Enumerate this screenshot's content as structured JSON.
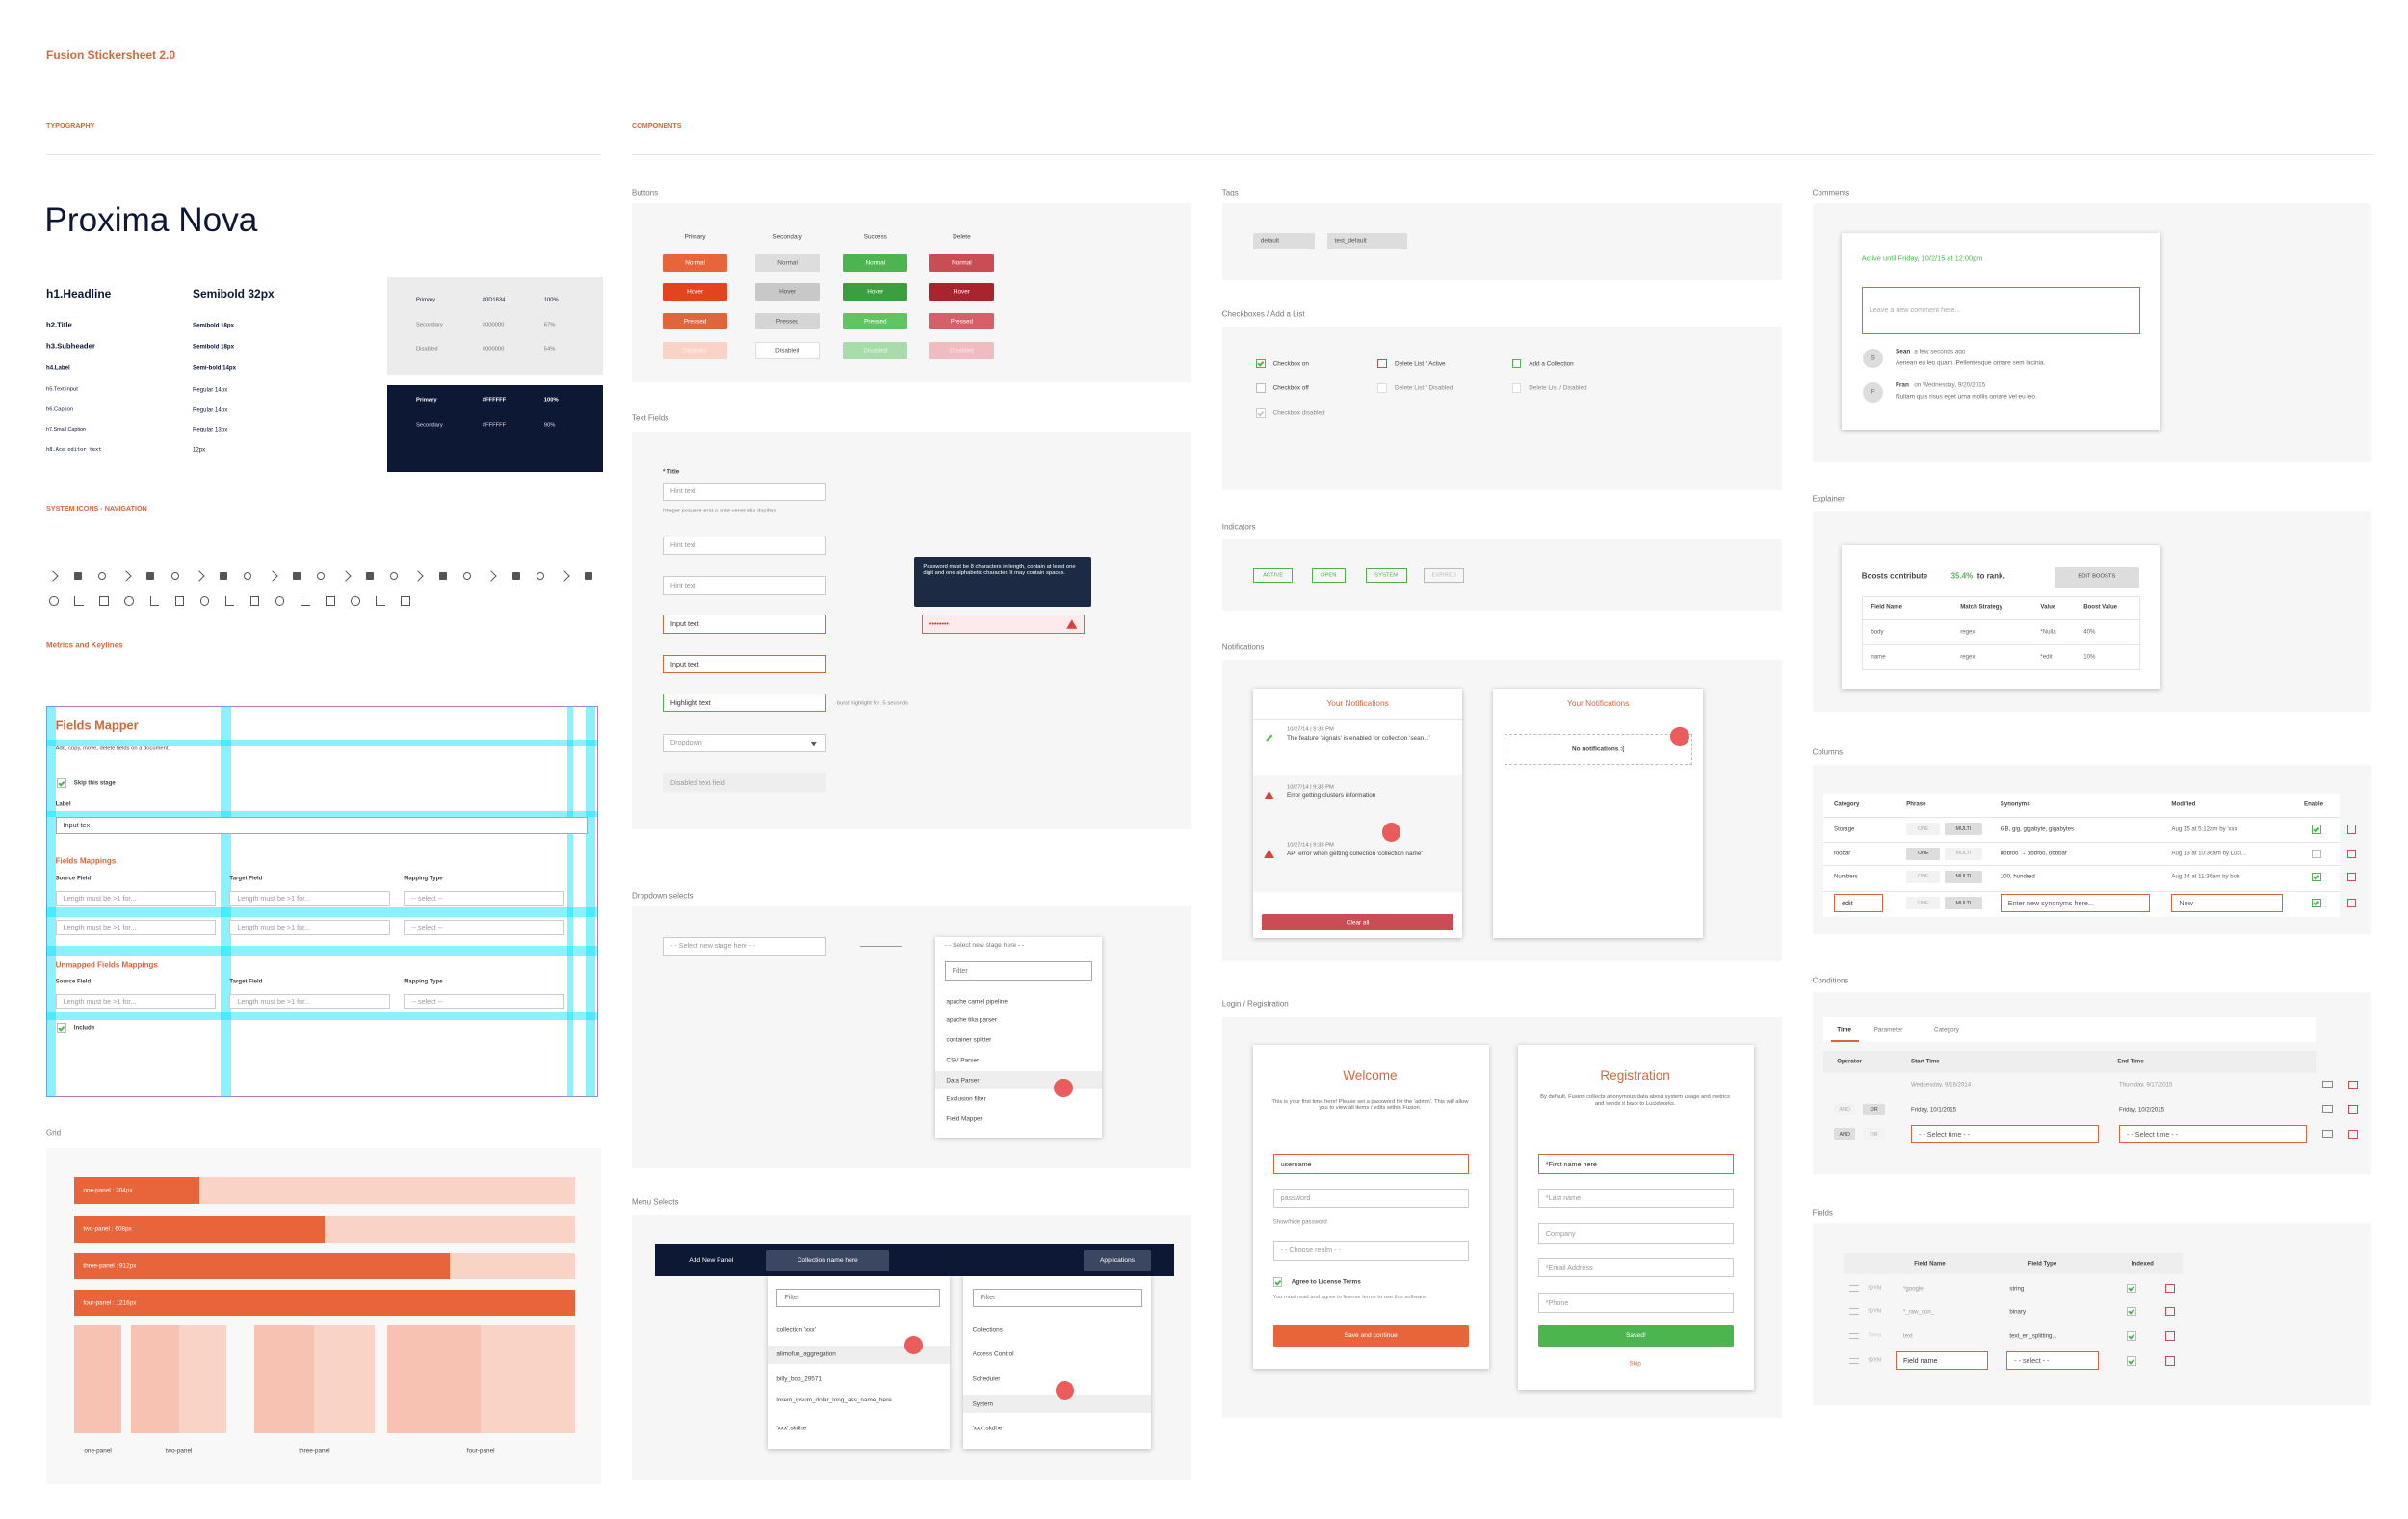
{
  "header": {
    "title": "Fusion Stickersheet 2.0",
    "typography": "TYPOGRAPHY",
    "components": "COMPONENTS"
  },
  "typography": {
    "font": "Proxima Nova",
    "styles": [
      {
        "name": "h1.Headline",
        "spec": "Semibold 32px"
      },
      {
        "name": "h2.Title",
        "spec": "Semibold 18px"
      },
      {
        "name": "h3.Subheader",
        "spec": "Semibold 18px"
      },
      {
        "name": "h4.Label",
        "spec": "Semi-bold 14px"
      },
      {
        "name": "h5.Text input",
        "spec": "Regular 14px"
      },
      {
        "name": "h6.Caption",
        "spec": "Regular 14px"
      },
      {
        "name": "h7.Small Caption",
        "spec": "Regular 13px"
      },
      {
        "name": "h8.Ace editor text",
        "spec": "12px"
      }
    ],
    "light": [
      {
        "name": "Primary",
        "hex": "#0D1834",
        "opacity": "100%"
      },
      {
        "name": "Secondary",
        "hex": "#000000",
        "opacity": "67%"
      },
      {
        "name": "Disabled",
        "hex": "#000000",
        "opacity": "54%"
      }
    ],
    "dark": [
      {
        "name": "Primary",
        "hex": "#FFFFFF",
        "opacity": "100%"
      },
      {
        "name": "Secondary",
        "hex": "#FFFFFF",
        "opacity": "90%"
      }
    ]
  },
  "icons": {
    "heading": "SYSTEM ICONS - NAVIGATION"
  },
  "metrics": {
    "heading": "Metrics and Keylines",
    "title": "Fields Mapper",
    "subtitle": "Add, copy, move, delete fields on a document.",
    "skip": "Skip this stage",
    "label": "Label",
    "input": "Input tex",
    "mappings": "Fields Mappings",
    "columns": [
      "Source Field",
      "Target Field",
      "Mapping Type"
    ],
    "placeholder": "Length must be >1 for...",
    "select": "-- select --",
    "unmapped": "Unmapped Fields Mappings",
    "include": "Include"
  },
  "grid": {
    "heading": "Grid",
    "bars": [
      "one-panel : 304px",
      "two-panel : 608px",
      "three-panel : 912px",
      "four-panel : 1216px"
    ],
    "labels": [
      "one-panel",
      "two-panel",
      "three-panel",
      "four-panel"
    ]
  },
  "buttons": {
    "heading": "Buttons",
    "columns": [
      "Primary",
      "Secondary",
      "Success",
      "Delete"
    ],
    "states": [
      "Normal",
      "Hover",
      "Pressed",
      "Disabled"
    ]
  },
  "text_fields": {
    "heading": "Text Fields",
    "label": "* Title",
    "helper": "Integer posuere erat a ante venenatis dapibus",
    "fields": [
      "Hint text",
      "Hint text",
      "Hint text",
      "Input text",
      "Input text",
      "Highlight text",
      "Dropdown",
      "Disabled text field"
    ],
    "note": "burst highlight for .5 seconds",
    "tooltip": "Password must be 8 characters in length, contain at least one digit and one alphabetic character. It may contain spaces.",
    "password": "••••••••"
  },
  "dropdowns": {
    "heading": "Dropdown selects",
    "placeholder": "- - Select new stage here - -",
    "filter": "Filter",
    "options": [
      "apache camel pipeline",
      "apache tika parser",
      "container splitter",
      "CSV Parser",
      "Data Parser",
      "Exclusion filter",
      "Field Mapper"
    ]
  },
  "menus": {
    "heading": "Menu Selects",
    "add": "Add New Panel",
    "collection": "Collection name here",
    "applications": "Applications",
    "filter": "Filter",
    "left": [
      "collection 'xxx'",
      "alimofun_aggregation",
      "billy_bob_29571",
      "lorem_ipsum_dolar_long_ass_name_here",
      "'xxx'.skdhe"
    ],
    "right": [
      "Collections",
      "Access Control",
      "Scheduler",
      "System",
      "'xxx'.skdhe"
    ]
  },
  "tags": {
    "heading": "Tags",
    "items": [
      "default",
      "test_default"
    ]
  },
  "checkboxes": {
    "heading": "Checkboxes / Add a List",
    "items": [
      "Checkbox on",
      "Checkbox off",
      "Checkbox disabled",
      "Delete List / Active",
      "Delete List / Disabled",
      "Add a Collection",
      "Delete List / Disabled"
    ]
  },
  "indicators": {
    "heading": "Indicators",
    "items": [
      "ACTIVE",
      "OPEN",
      "SYSTEM",
      "EXPIRED"
    ]
  },
  "notifications": {
    "heading": "Notifications",
    "title": "Your Notifications",
    "items": [
      {
        "time": "10/27/14 | 9:33 PM",
        "text": "The feature 'signals' is enabled for collection 'sean...'"
      },
      {
        "time": "10/27/14 | 9:33 PM",
        "text": "Error getting clusters information"
      },
      {
        "time": "10/27/14 | 9:33 PM",
        "text": "API error when getting collection 'collection name'"
      }
    ],
    "clear": "Clear all",
    "empty": "No notifications :("
  },
  "login": {
    "heading": "Login / Registration",
    "welcome": {
      "title": "Welcome",
      "desc": "This is your first time here! Please set a password for the 'admin'. This will allow you to view all items / edits within Fusion.",
      "username": "username",
      "password": "password",
      "show": "Show/hide password",
      "realm": "- - Choose realm - -",
      "agree": "Agree to License Terms",
      "terms": "You must read and agree to license terms to use this software.",
      "save": "Save and continue"
    },
    "registration": {
      "title": "Registration",
      "desc": "By default, Fusion collects anonymous data about system usage and metrics and sends it back to Lucidworks.",
      "fields": [
        "*First name here",
        "*Last name",
        "Company",
        "*Email Address",
        "*Phone"
      ],
      "saved": "Saved!",
      "skip": "Skip"
    }
  },
  "comments": {
    "heading": "Comments",
    "active": "Active until Friday, 10/2/15 at 12:00pm",
    "placeholder": "Leave a new comment here...",
    "items": [
      {
        "initial": "S",
        "author": "Sean",
        "when": "a few seconds ago",
        "text": "Aenean eu leo quam. Pellentesque ornare sem lacinia."
      },
      {
        "initial": "F",
        "author": "Fran",
        "when": "on Wednesday, 9/20/2015",
        "text": "Nullam quis risus eget urna mollis ornare vel eu leo."
      }
    ]
  },
  "explainer": {
    "heading": "Explainer",
    "before": "Boosts contribute",
    "percent": "35.4%",
    "after": "to rank.",
    "button": "EDIT BOOSTS",
    "columns": [
      "Field Name",
      "Match Strategy",
      "Value",
      "Boost Value"
    ],
    "rows": [
      [
        "body",
        "regex",
        "*Nulla",
        "40%"
      ],
      [
        "name",
        "regex",
        "*edit",
        "10%"
      ]
    ]
  },
  "columns_table": {
    "heading": "Columns",
    "columns": [
      "Category",
      "Phrase",
      "Synonyms",
      "Modified",
      "Enable"
    ],
    "one": "ONE",
    "multi": "MULTI",
    "rows": [
      [
        "Storage",
        "GB, gig, gigabyte, gigabytes",
        "Aug 15 at 5:12am by 'xxx'"
      ],
      [
        "foobar",
        "bbbfoo → bbbfoo, bbbbar",
        "Aug 13 at 10:36am by Luci..."
      ],
      [
        "Numbers",
        "100, hundred",
        "Aug 14 at 11:36am by bob"
      ],
      [
        "edit",
        "Enter new synonyms here...",
        "Now"
      ]
    ]
  },
  "conditions": {
    "heading": "Conditions",
    "tabs": [
      "Time",
      "Parameter",
      "Category"
    ],
    "columns": [
      "Operator",
      "Start Time",
      "End Time"
    ],
    "and": "AND",
    "or": "OR",
    "rows": [
      [
        "Wednesday, 9/16/2014",
        "Thursday, 9/17/2015"
      ],
      [
        "Friday, 10/1/2015",
        "Friday, 10/2/2015"
      ],
      [
        "- - Select time - -",
        "- - Select time - -"
      ]
    ]
  },
  "fields": {
    "heading": "Fields",
    "columns": [
      "Field Name",
      "Field Type",
      "Indexed"
    ],
    "rows": [
      [
        "!DYN",
        "*google",
        "string"
      ],
      [
        "!DYN",
        "*_raw_con_",
        "binary"
      ],
      [
        "Temp",
        "text",
        "text_en_splitting..."
      ],
      [
        "!DYN",
        "Field name",
        "- - select - -"
      ]
    ]
  }
}
